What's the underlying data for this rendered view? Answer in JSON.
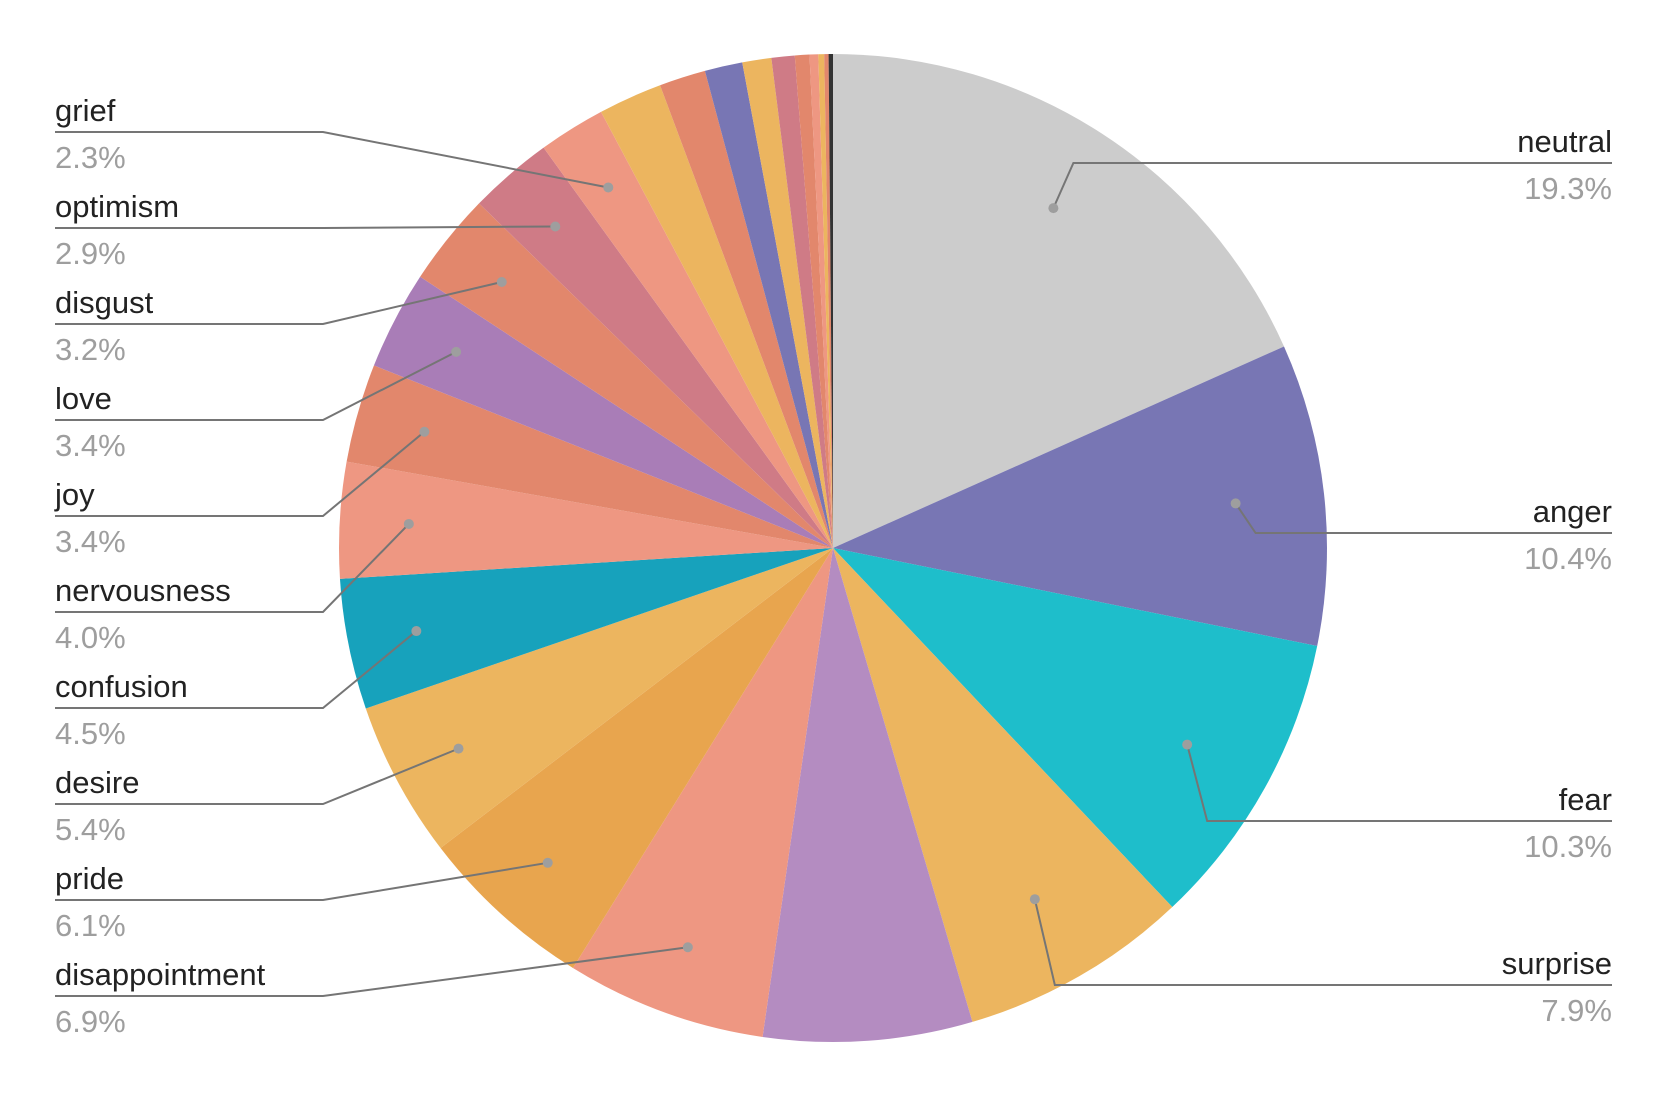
{
  "chart_data": {
    "type": "pie",
    "title": "",
    "slices": [
      {
        "label": "neutral",
        "value": 19.3,
        "pct_label": "19.3%",
        "color": "#cccccc"
      },
      {
        "label": "anger",
        "value": 10.4,
        "pct_label": "10.4%",
        "color": "#7876b4"
      },
      {
        "label": "fear",
        "value": 10.3,
        "pct_label": "10.3%",
        "color": "#1ebecb"
      },
      {
        "label": "surprise",
        "value": 7.9,
        "pct_label": "7.9%",
        "color": "#ecb55f"
      },
      {
        "label": "",
        "value": 7.2,
        "pct_label": "",
        "color": "#b48cc1"
      },
      {
        "label": "disappointment",
        "value": 6.9,
        "pct_label": "6.9%",
        "color": "#ee9782"
      },
      {
        "label": "pride",
        "value": 6.1,
        "pct_label": "6.1%",
        "color": "#e8a54e"
      },
      {
        "label": "desire",
        "value": 5.4,
        "pct_label": "5.4%",
        "color": "#ecb55f"
      },
      {
        "label": "confusion",
        "value": 4.5,
        "pct_label": "4.5%",
        "color": "#17a2bc"
      },
      {
        "label": "nervousness",
        "value": 4.0,
        "pct_label": "4.0%",
        "color": "#ee9782"
      },
      {
        "label": "joy",
        "value": 3.4,
        "pct_label": "3.4%",
        "color": "#e2876c"
      },
      {
        "label": "love",
        "value": 3.4,
        "pct_label": "3.4%",
        "color": "#a97db7"
      },
      {
        "label": "disgust",
        "value": 3.2,
        "pct_label": "3.2%",
        "color": "#e2876c"
      },
      {
        "label": "optimism",
        "value": 2.9,
        "pct_label": "2.9%",
        "color": "#cf7b86"
      },
      {
        "label": "grief",
        "value": 2.3,
        "pct_label": "2.3%",
        "color": "#ee9782"
      },
      {
        "label": "",
        "value": 2.2,
        "pct_label": "",
        "color": "#ecb55f"
      },
      {
        "label": "",
        "value": 1.6,
        "pct_label": "",
        "color": "#e2876c"
      },
      {
        "label": "",
        "value": 1.3,
        "pct_label": "",
        "color": "#7876b4"
      },
      {
        "label": "",
        "value": 1.0,
        "pct_label": "",
        "color": "#ecb55f"
      },
      {
        "label": "",
        "value": 0.8,
        "pct_label": "",
        "color": "#cf7b86"
      },
      {
        "label": "",
        "value": 0.5,
        "pct_label": "",
        "color": "#e2876c"
      },
      {
        "label": "",
        "value": 0.3,
        "pct_label": "",
        "color": "#ee9782"
      },
      {
        "label": "",
        "value": 0.2,
        "pct_label": "",
        "color": "#ecb55f"
      },
      {
        "label": "",
        "value": 0.15,
        "pct_label": "",
        "color": "#e2876c"
      },
      {
        "label": "",
        "value": 0.15,
        "pct_label": "",
        "color": "#333333"
      }
    ]
  }
}
